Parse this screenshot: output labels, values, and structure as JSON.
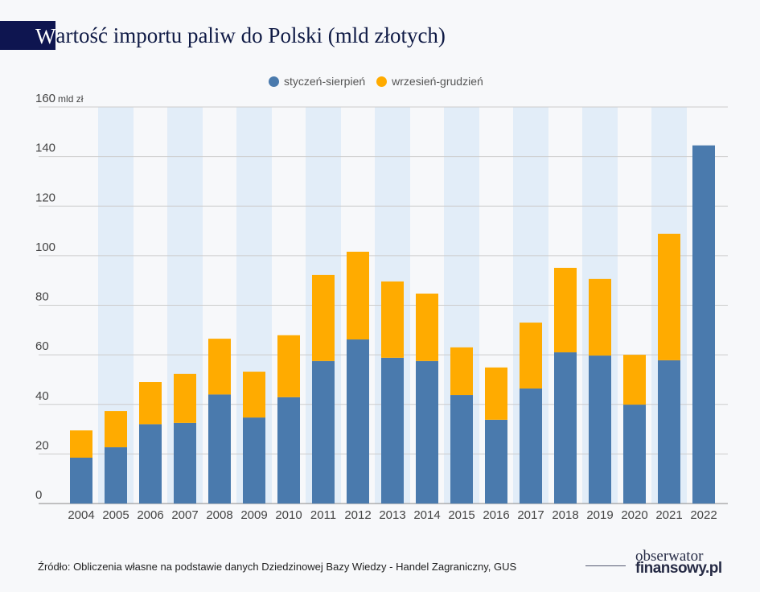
{
  "title_first_letter": "W",
  "title_rest": "artość importu paliw do Polski (mld złotych)",
  "source": "Źródło: Obliczenia własne na podstawie danych Dziedzinowej Bazy Wiedzy - Handel Zagraniczny, GUS",
  "logo": {
    "line1": "obserwator",
    "line2": "finansowy.pl"
  },
  "chart_data": {
    "type": "bar",
    "stacked": true,
    "title": "Wartość importu paliw do Polski (mld złotych)",
    "ylabel": "mld zł",
    "ylim": [
      0,
      160
    ],
    "yticks": [
      0,
      20,
      40,
      60,
      80,
      100,
      120,
      140,
      160
    ],
    "ytick_labels": [
      "0",
      "20",
      "40",
      "60",
      "80",
      "100",
      "120",
      "140",
      "160"
    ],
    "ytick_unit": "mld zł",
    "grid": true,
    "legend": "top-center",
    "categories": [
      "2004",
      "2005",
      "2006",
      "2007",
      "2008",
      "2009",
      "2010",
      "2011",
      "2012",
      "2013",
      "2014",
      "2015",
      "2016",
      "2017",
      "2018",
      "2019",
      "2020",
      "2021",
      "2022"
    ],
    "series": [
      {
        "name": "styczeń-sierpień",
        "color": "#4a7aad",
        "values": [
          18.5,
          22.7,
          32,
          32.5,
          44,
          34.7,
          42.9,
          57.5,
          66.2,
          58.8,
          57.5,
          43.8,
          33.8,
          46.4,
          61,
          59.7,
          39.9,
          57.8,
          144.5
        ]
      },
      {
        "name": "wrzesień-grudzień",
        "color": "#ffab00",
        "values": [
          11,
          14.6,
          17,
          19.8,
          22.5,
          18.5,
          25,
          34.7,
          35.4,
          30.8,
          27.2,
          19.2,
          21.1,
          26.6,
          34.1,
          30.9,
          20.1,
          51,
          0
        ]
      }
    ]
  }
}
